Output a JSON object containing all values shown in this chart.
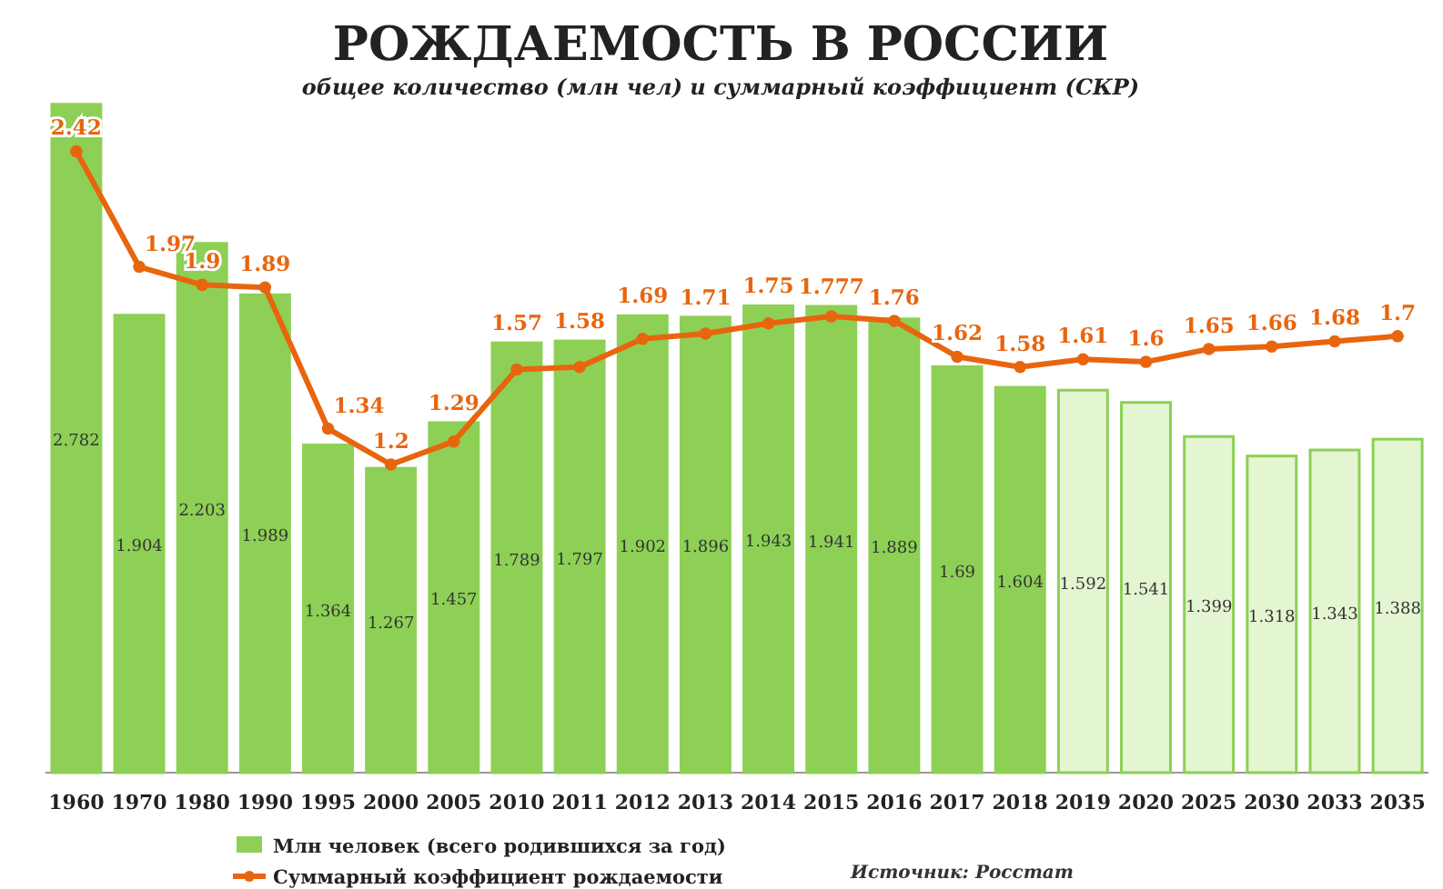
{
  "chart_data": {
    "type": "bar",
    "title": "РОЖДАЕМОСТЬ В РОССИИ",
    "subtitle": "общее количество (млн чел) и суммарный коэффициент (СКР)",
    "categories": [
      "1960",
      "1970",
      "1980",
      "1990",
      "1995",
      "2000",
      "2005",
      "2010",
      "2011",
      "2012",
      "2013",
      "2014",
      "2015",
      "2016",
      "2017",
      "2018",
      "2019",
      "2020",
      "2025",
      "2030",
      "2033",
      "2035"
    ],
    "series": [
      {
        "name": "Млн человек (всего родившихся за год)",
        "type": "bar",
        "color": "#8dd055",
        "colors": [
          "#8dd055",
          "#8dd055",
          "#8dd055",
          "#8dd055",
          "#8dd055",
          "#8dd055",
          "#8dd055",
          "#8dd055",
          "#8dd055",
          "#8dd055",
          "#8dd055",
          "#8dd055",
          "#8dd055",
          "#8dd055",
          "#8dd055",
          "#8dd055",
          "#e4f5d2",
          "#e4f5d2",
          "#e4f5d2",
          "#e4f5d2",
          "#e4f5d2",
          "#e4f5d2"
        ],
        "values": [
          2.782,
          1.904,
          2.203,
          1.989,
          1.364,
          1.267,
          1.457,
          1.789,
          1.797,
          1.902,
          1.896,
          1.943,
          1.941,
          1.889,
          1.69,
          1.604,
          1.592,
          1.541,
          1.399,
          1.318,
          1.343,
          1.388
        ]
      },
      {
        "name": "Суммарный коэффициент рождаемости",
        "type": "line",
        "axis": "y2",
        "color": "#e8650e",
        "values": [
          2.42,
          1.97,
          1.9,
          1.89,
          1.34,
          1.2,
          1.29,
          1.57,
          1.58,
          1.69,
          1.71,
          1.75,
          1.777,
          1.76,
          1.62,
          1.58,
          1.61,
          1.6,
          1.65,
          1.66,
          1.68,
          1.7
        ]
      }
    ],
    "ylim": [
      0,
      2.8
    ],
    "y2lim": [
      0,
      2.62
    ],
    "tick_labels": "x",
    "data_labels": true,
    "legend": "bottom left",
    "marker": "circle",
    "line_style": "solid",
    "annotations": [
      "Источник: Росстат"
    ]
  }
}
